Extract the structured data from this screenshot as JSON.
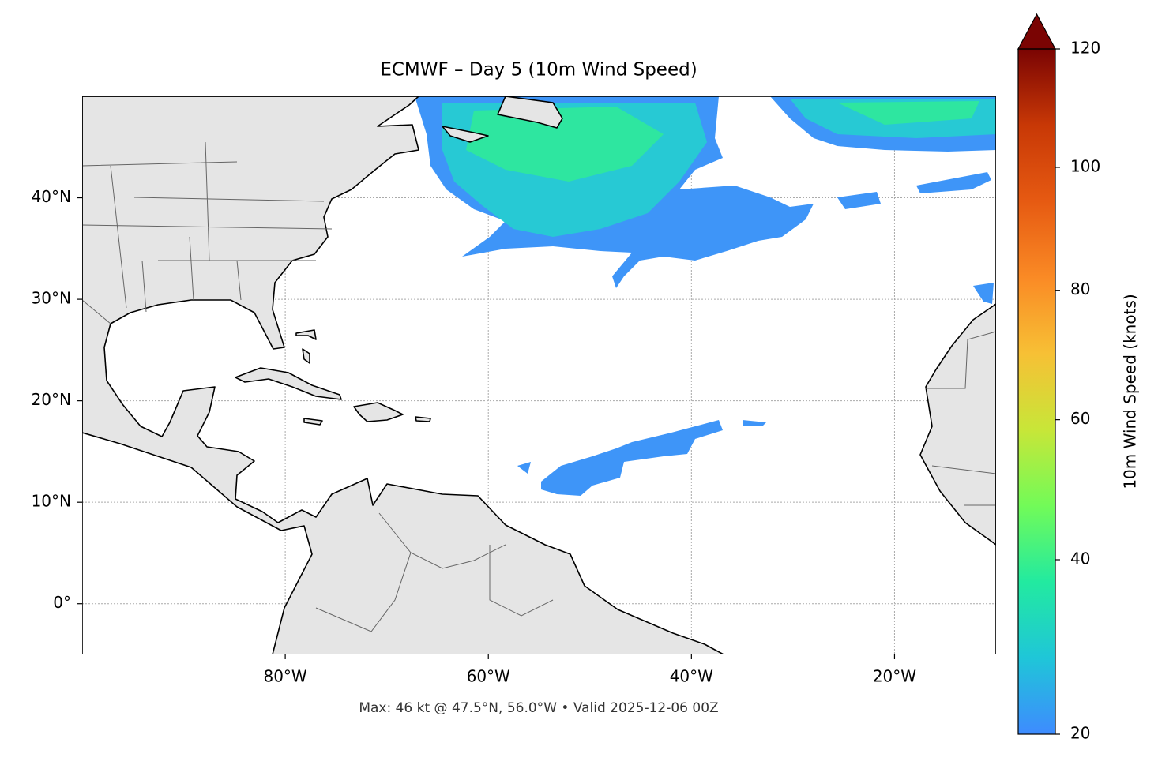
{
  "chart_data": {
    "type": "map",
    "title": "ECMWF – Day 5 (10m Wind Speed)",
    "footer": "Max: 46 kt @ 47.5°N, 56.0°W • Valid 2025-12-06 00Z",
    "xlim": [
      -100,
      -10
    ],
    "ylim": [
      -5,
      50
    ],
    "xticks": [
      {
        "value": -80,
        "label": "80°W"
      },
      {
        "value": -60,
        "label": "60°W"
      },
      {
        "value": -40,
        "label": "40°W"
      },
      {
        "value": -20,
        "label": "20°W"
      }
    ],
    "yticks": [
      {
        "value": 0,
        "label": "0°"
      },
      {
        "value": 10,
        "label": "10°N"
      },
      {
        "value": 20,
        "label": "20°N"
      },
      {
        "value": 30,
        "label": "30°N"
      },
      {
        "value": 40,
        "label": "40°N"
      }
    ],
    "grid": true,
    "colorbar": {
      "label": "10m Wind Speed (knots)",
      "lim": [
        20,
        120
      ],
      "ticks": [
        20,
        40,
        60,
        80,
        100,
        120
      ],
      "norm": "power",
      "gamma": 0.85,
      "extend": "max",
      "colors": [
        "#3e8bff",
        "#1fc6d8",
        "#22eaa0",
        "#72fb58",
        "#c8e638",
        "#f7c035",
        "#fa8a25",
        "#e65a12",
        "#c83806",
        "#7a0403"
      ]
    }
  }
}
